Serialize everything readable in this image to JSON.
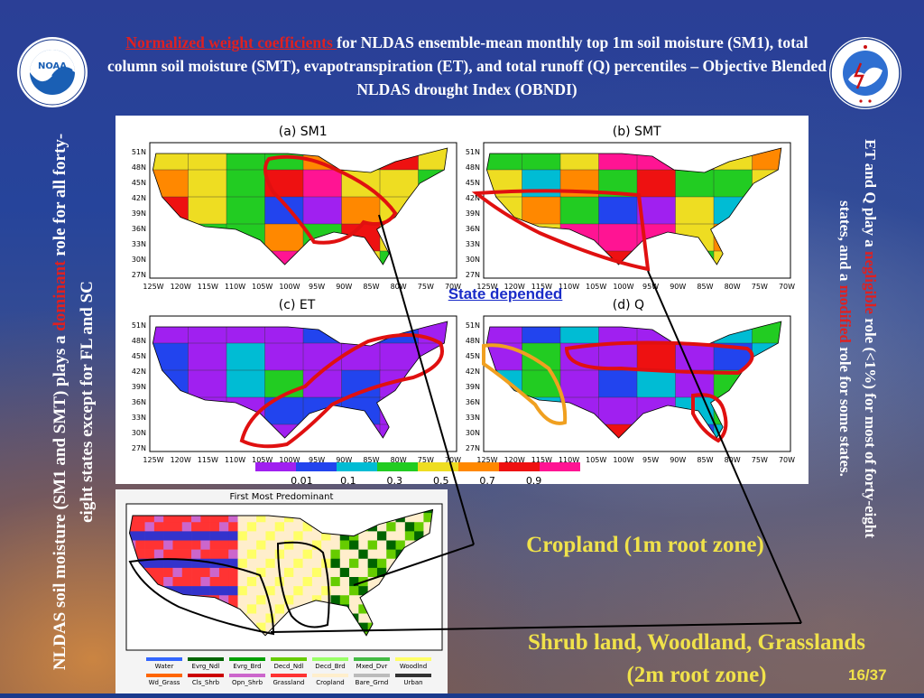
{
  "slide": {
    "title_highlight": "Normalized weight coefficients ",
    "title_rest": "for NLDAS ensemble-mean monthly top 1m soil moisture (SM1), total column soil moisture (SMT), evapotranspiration (ET), and total runoff (Q) percentiles – Objective Blended NLDAS drought Index (OBNDI)",
    "page_number": "16/37"
  },
  "left_note": {
    "part1": "NLDAS soil moisture (SM1 and SMT) plays a ",
    "accent": "dominant",
    "part2": " role for all forty-eight states except for FL and SC"
  },
  "right_note": {
    "part1": "ET and Q play a ",
    "accent1": "negligible",
    "part2": " role (<1%) for most of forty-eight states, and a ",
    "accent2": "modified",
    "part3": " role for some states."
  },
  "annotations": {
    "state_depended": "State depended",
    "cropland": "Cropland (1m root zone)",
    "shrub_line1": "Shrub land, Woodland, Grasslands",
    "shrub_line2": "(2m root zone)"
  },
  "maps": {
    "panels": [
      {
        "label": "(a)  SM1"
      },
      {
        "label": "(b)  SMT"
      },
      {
        "label": "(c)  ET"
      },
      {
        "label": "(d)  Q"
      }
    ],
    "lat_ticks": [
      "51N",
      "48N",
      "45N",
      "42N",
      "39N",
      "36N",
      "33N",
      "30N",
      "27N"
    ],
    "lon_ticks": [
      "125W",
      "120W",
      "115W",
      "110W",
      "105W",
      "100W",
      "95W",
      "90W",
      "85W",
      "80W",
      "75W",
      "70W"
    ],
    "colorbar_labels": [
      "0.01",
      "0.1",
      "0.3",
      "0.5",
      "0.7",
      "0.9"
    ],
    "colorbar_colors": [
      "#a020f0",
      "#2244ee",
      "#00bcd4",
      "#22cc22",
      "#eedd22",
      "#ff8800",
      "#ee1111",
      "#ff1493"
    ]
  },
  "veg_map": {
    "title": "First Most Predominant",
    "legend_row1": [
      "Water",
      "Evrg_Ndl",
      "Evrg_Brd",
      "Decd_Ndl",
      "Decd_Brd",
      "Mxed_Dvr",
      "Woodlnd"
    ],
    "legend_row1_colors": [
      "#3366ff",
      "#006400",
      "#00a000",
      "#66cc00",
      "#99ff66",
      "#44bb44",
      "#ffff66"
    ],
    "legend_row2": [
      "Wd_Grass",
      "Cls_Shrb",
      "Opn_Shrb",
      "Grassland",
      "Cropland",
      "Bare_Grnd",
      "Urban"
    ],
    "legend_row2_colors": [
      "#ff6600",
      "#cc0000",
      "#cc66cc",
      "#ff3333",
      "#ffeecc",
      "#bbbbbb",
      "#333333"
    ]
  }
}
